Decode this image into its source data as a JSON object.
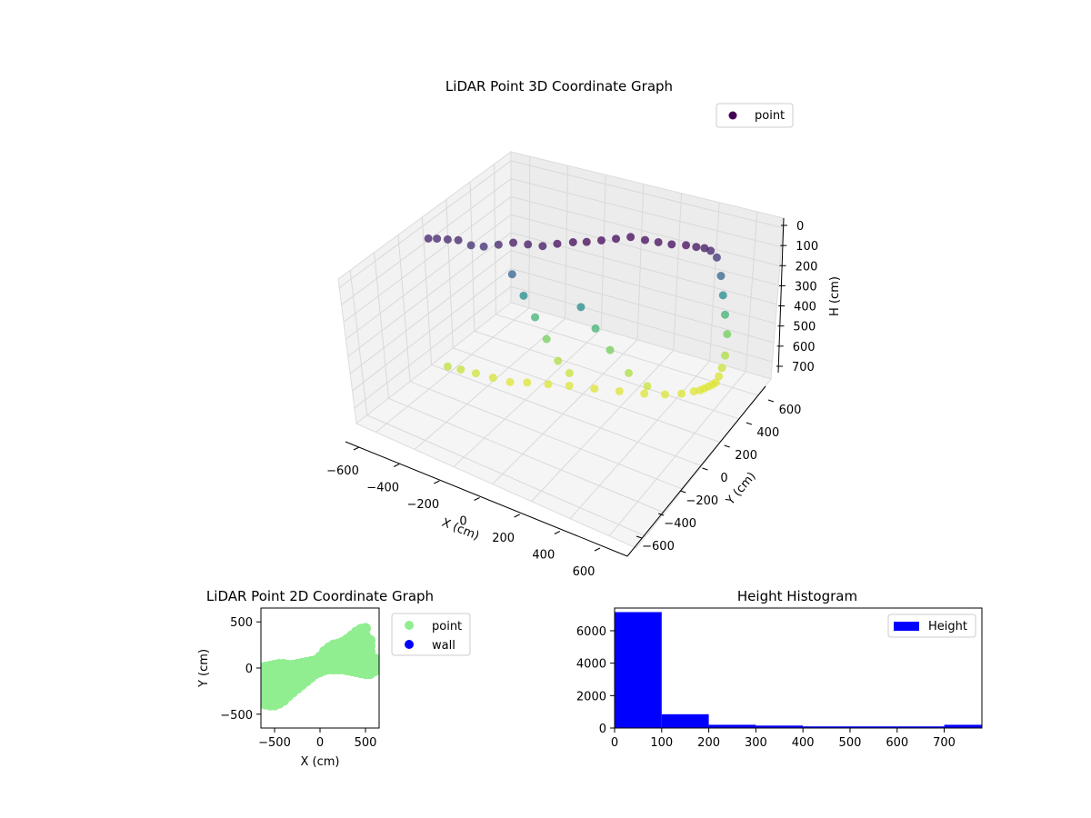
{
  "chart_data": [
    {
      "type": "scatter",
      "projection": "3d",
      "title": "LiDAR Point 3D Coordinate Graph",
      "xlabel": "X (cm)",
      "ylabel": "Y (cm)",
      "zlabel": "H (cm)",
      "x_ticks": [
        "−600",
        "−400",
        "−200",
        "0",
        "200",
        "400",
        "600"
      ],
      "y_ticks": [
        "−600",
        "−400",
        "−200",
        "0",
        "200",
        "400",
        "600"
      ],
      "z_ticks": [
        "0",
        "100",
        "200",
        "300",
        "400",
        "500",
        "600",
        "700"
      ],
      "xlim": [
        -650,
        650
      ],
      "ylim": [
        -650,
        650
      ],
      "zlim": [
        0,
        780
      ],
      "z_inverted": true,
      "colormap": "viridis",
      "legend": {
        "entries": [
          {
            "label": "point",
            "color": "#440154"
          }
        ],
        "placement": "top-right"
      },
      "series": [
        {
          "name": "point",
          "points_x": [
            -630,
            -600,
            -560,
            -520,
            -470,
            -420,
            -360,
            -300,
            -240,
            -180,
            -120,
            -60,
            -10,
            40,
            90,
            140,
            200,
            260,
            320,
            380,
            420,
            450,
            470,
            490,
            500,
            505,
            510,
            515,
            510,
            505,
            500,
            495,
            490,
            480,
            470,
            460,
            440,
            400,
            340,
            260,
            160,
            60,
            -40,
            -120,
            -200,
            -260,
            -320,
            -380,
            -430,
            -470,
            -300,
            -250,
            -200,
            -150,
            -100,
            -50,
            0,
            60,
            120,
            200,
            280
          ],
          "points_y": [
            -80,
            -60,
            -40,
            -20,
            0,
            20,
            40,
            60,
            80,
            100,
            120,
            150,
            180,
            220,
            260,
            300,
            320,
            330,
            340,
            360,
            380,
            400,
            420,
            440,
            460,
            470,
            480,
            490,
            480,
            460,
            440,
            420,
            400,
            380,
            360,
            340,
            320,
            280,
            240,
            200,
            160,
            120,
            80,
            40,
            0,
            -40,
            -80,
            -120,
            -160,
            -200,
            50,
            60,
            70,
            80,
            90,
            100,
            110,
            130,
            150,
            170,
            190
          ],
          "points_h": [
            60,
            60,
            60,
            60,
            80,
            80,
            60,
            40,
            40,
            40,
            20,
            10,
            10,
            10,
            10,
            10,
            20,
            20,
            20,
            20,
            30,
            40,
            60,
            100,
            200,
            300,
            400,
            500,
            600,
            650,
            680,
            700,
            700,
            700,
            700,
            700,
            700,
            700,
            700,
            700,
            700,
            700,
            700,
            700,
            700,
            700,
            680,
            660,
            640,
            620,
            200,
            300,
            400,
            500,
            600,
            650,
            300,
            400,
            500,
            600,
            650
          ]
        }
      ]
    },
    {
      "type": "scatter",
      "title": "LiDAR Point 2D Coordinate Graph",
      "xlabel": "X (cm)",
      "ylabel": "Y (cm)",
      "x_ticks": [
        "−500",
        "0",
        "500"
      ],
      "y_ticks": [
        "500",
        "0",
        "−500"
      ],
      "xlim": [
        -650,
        650
      ],
      "ylim": [
        -650,
        650
      ],
      "legend": {
        "placement": "outside-right"
      },
      "series": [
        {
          "name": "point",
          "color": "#90ee90",
          "x": [
            -650,
            -600,
            -550,
            -500,
            -450,
            -400,
            -350,
            -300,
            -250,
            -200,
            -150,
            -100,
            -50,
            0,
            50,
            100,
            150,
            200,
            250,
            300,
            350,
            400,
            450,
            500,
            550,
            600
          ],
          "y_low": [
            -380,
            -390,
            -400,
            -400,
            -380,
            -350,
            -300,
            -260,
            -220,
            -180,
            -140,
            -100,
            -60,
            -40,
            -20,
            -10,
            -10,
            -10,
            -10,
            -20,
            -30,
            -40,
            -50,
            -60,
            -60,
            -30
          ],
          "y_high": [
            0,
            10,
            20,
            30,
            40,
            40,
            30,
            30,
            40,
            50,
            60,
            70,
            80,
            120,
            180,
            220,
            250,
            260,
            280,
            310,
            350,
            390,
            420,
            430,
            300,
            100
          ]
        },
        {
          "name": "wall",
          "color": "#0000ff",
          "x": [],
          "y": []
        }
      ]
    },
    {
      "type": "bar",
      "title": "Height Histogram",
      "xlabel": "",
      "ylabel": "",
      "bins": [
        [
          0,
          100
        ],
        [
          100,
          200
        ],
        [
          200,
          300
        ],
        [
          300,
          400
        ],
        [
          400,
          500
        ],
        [
          500,
          600
        ],
        [
          600,
          700
        ],
        [
          700,
          780
        ]
      ],
      "values": [
        7150,
        850,
        200,
        150,
        100,
        100,
        100,
        200
      ],
      "x_ticks": [
        "0",
        "100",
        "200",
        "300",
        "400",
        "500",
        "600",
        "700"
      ],
      "y_ticks": [
        "0",
        "2000",
        "4000",
        "6000"
      ],
      "xlim": [
        0,
        780
      ],
      "ylim": [
        0,
        7400
      ],
      "legend": {
        "entries": [
          {
            "label": "Height",
            "color": "#0000ff"
          }
        ],
        "placement": "top-right"
      },
      "series": [
        {
          "name": "Height",
          "color": "#0000ff"
        }
      ]
    }
  ]
}
